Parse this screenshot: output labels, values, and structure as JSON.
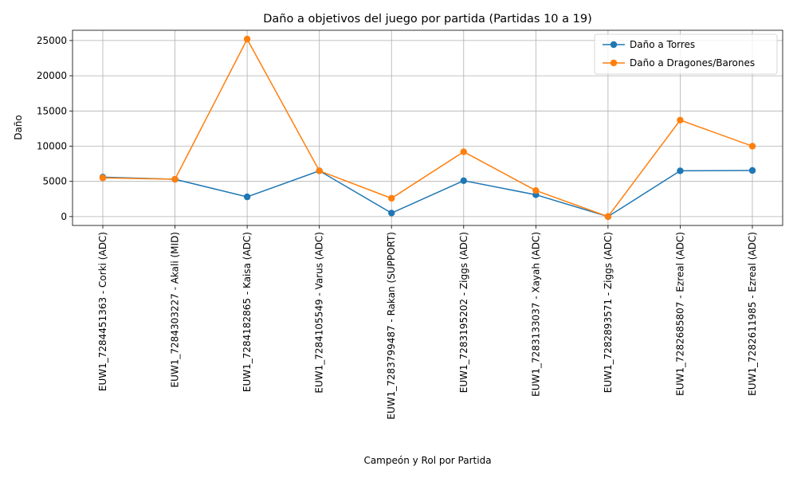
{
  "chart_data": {
    "type": "line",
    "title": "Daño a objetivos del juego por partida (Partidas 10 a 19)",
    "xlabel": "Campeón y Rol por Partida",
    "ylabel": "Daño",
    "categories": [
      "EUW1_7284451363 - Corki (ADC)",
      "EUW1_7284303227 - Akali (MID)",
      "EUW1_7284182865 - Kaisa (ADC)",
      "EUW1_7284105549 - Varus (ADC)",
      "EUW1_7283799487 - Rakan (SUPPORT)",
      "EUW1_7283195202 - Ziggs (ADC)",
      "EUW1_7283133037 - Xayah (ADC)",
      "EUW1_7282893571 - Ziggs (ADC)",
      "EUW1_7282685807 - Ezreal (ADC)",
      "EUW1_7282611985 - Ezreal (ADC)"
    ],
    "series": [
      {
        "name": "Daño a Torres",
        "color": "#1f77b4",
        "values": [
          5600,
          5300,
          2800,
          6500,
          500,
          5100,
          3100,
          0,
          6500,
          6550
        ]
      },
      {
        "name": "Daño a Dragones/Barones",
        "color": "#ff7f0e",
        "values": [
          5500,
          5300,
          25200,
          6500,
          2600,
          9200,
          3700,
          0,
          13700,
          10000
        ]
      }
    ],
    "ylim": [
      -1260,
      26460
    ],
    "yticks": [
      0,
      5000,
      10000,
      15000,
      20000,
      25000
    ],
    "grid": true,
    "legend_position": "upper right"
  }
}
